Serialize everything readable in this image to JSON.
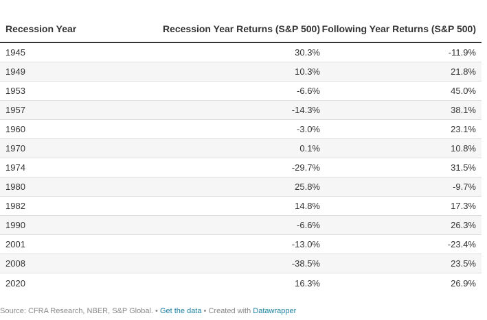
{
  "chart_data": {
    "type": "table",
    "columns": [
      "Recession Year",
      "Recession Year Returns (S&P 500)",
      "Following Year Returns (S&P 500)"
    ],
    "rows": [
      {
        "year": "1945",
        "recession": "30.3%",
        "following": "-11.9%"
      },
      {
        "year": "1949",
        "recession": "10.3%",
        "following": "21.8%"
      },
      {
        "year": "1953",
        "recession": "-6.6%",
        "following": "45.0%"
      },
      {
        "year": "1957",
        "recession": "-14.3%",
        "following": "38.1%"
      },
      {
        "year": "1960",
        "recession": "-3.0%",
        "following": "23.1%"
      },
      {
        "year": "1970",
        "recession": "0.1%",
        "following": "10.8%"
      },
      {
        "year": "1974",
        "recession": "-29.7%",
        "following": "31.5%"
      },
      {
        "year": "1980",
        "recession": "25.8%",
        "following": "-9.7%"
      },
      {
        "year": "1982",
        "recession": "14.8%",
        "following": "17.3%"
      },
      {
        "year": "1990",
        "recession": "-6.6%",
        "following": "26.3%"
      },
      {
        "year": "2001",
        "recession": "-13.0%",
        "following": "-23.4%"
      },
      {
        "year": "2008",
        "recession": "-38.5%",
        "following": "23.5%"
      },
      {
        "year": "2020",
        "recession": "16.3%",
        "following": "26.9%"
      }
    ]
  },
  "footer": {
    "source": "Source: CFRA Research, NBER, S&P Global.",
    "separator": "•",
    "get_data": "Get the data",
    "created_with": "Created with",
    "datawrapper": "Datawrapper"
  },
  "colors": {
    "text": "#333333",
    "link": "#1d81a2",
    "stripe": "#f6f6f6",
    "rule": "#dddddd"
  }
}
